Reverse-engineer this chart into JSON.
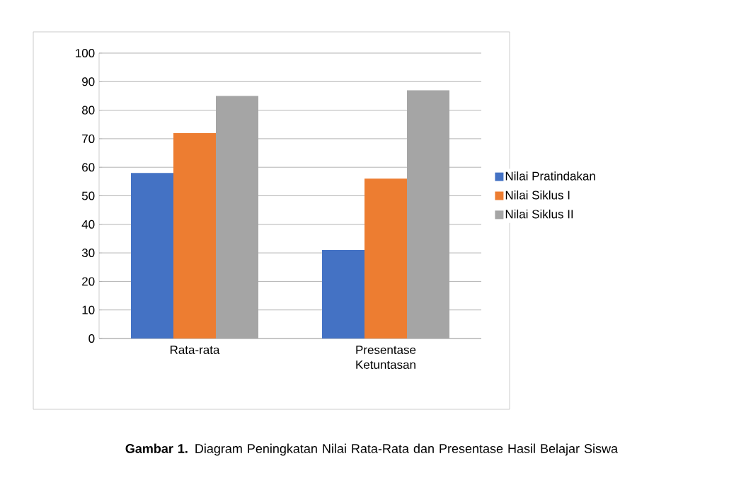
{
  "chart_data": {
    "type": "bar",
    "title": "**Gambar 1.** Diagram Peningkatan Nilai Rata-Rata dan Presentase Hasil Belajar Siswa",
    "categories": [
      "Rata-rata",
      "Presentase Ketuntasan"
    ],
    "series": [
      {
        "name": "Nilai Pratindakan",
        "color": "#4472c4",
        "values": [
          58,
          31
        ]
      },
      {
        "name": "Nilai Siklus I",
        "color": "#ed7d31",
        "values": [
          72,
          56
        ]
      },
      {
        "name": "Nilai Siklus II",
        "color": "#a5a5a5",
        "values": [
          85,
          87
        ]
      }
    ],
    "ylim": [
      0,
      100
    ],
    "yticks": [
      0,
      10,
      20,
      30,
      40,
      50,
      60,
      70,
      80,
      90,
      100
    ],
    "grid": "y",
    "legend": "right"
  }
}
